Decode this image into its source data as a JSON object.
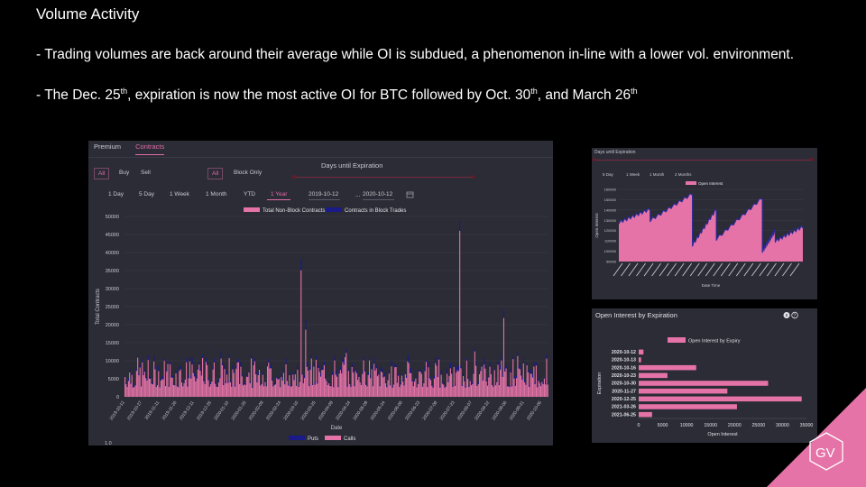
{
  "slide": {
    "title": "Volume Activity",
    "bullet1": "- Trading volumes are back around their average while OI is subdued, a phenomenon in-line with a lower vol. environment.",
    "bullet2_a": "- The Dec. 25",
    "bullet2_sup1": "th",
    "bullet2_b": ", expiration is now the most active OI for BTC followed by Oct. 30",
    "bullet2_sup2": "th",
    "bullet2_c": ", and March 26",
    "bullet2_sup3": "th"
  },
  "volume_panel": {
    "tabs": [
      "Premium",
      "Contracts"
    ],
    "side_filters": [
      "All",
      "Buy",
      "Sell"
    ],
    "trade_filters": [
      "All",
      "Block Only"
    ],
    "days_label": "Days until Expiration",
    "ranges": [
      "1 Day",
      "5 Day",
      "1 Week",
      "1 Month",
      "YTD",
      "1 Year"
    ],
    "date_from": "2019-10-12",
    "date_sep": "...",
    "date_to": "2020-10-12",
    "bottom_legend": [
      "Puts",
      "Calls"
    ],
    "bottom_value": "1.0"
  },
  "oi_panel": {
    "days_label": "Days until Expiration",
    "ranges": [
      "5 Day",
      "1 Week",
      "1 Month",
      "2 Months"
    ]
  },
  "exp_panel": {
    "title": "Open Interest by Expiration"
  },
  "colors": {
    "pink": "#e573a8",
    "navy": "#1a1a8a",
    "panel": "#2b2c35",
    "grid": "#3d3e4a"
  },
  "chart_data": [
    {
      "type": "bar",
      "title": "",
      "xlabel": "Date",
      "ylabel": "Total Contracts",
      "ylim": [
        0,
        50000
      ],
      "yticks": [
        0,
        5000,
        10000,
        15000,
        20000,
        25000,
        30000,
        35000,
        40000,
        45000,
        50000
      ],
      "legend": [
        "Total Non-Block Contracts",
        "Contracts in Block Trades"
      ],
      "legend_position": "top-center",
      "xrange": [
        "2019-10-12",
        "2020-10-12"
      ],
      "xtick_labels": [
        "2019-10-12",
        "2019-10-27",
        "2019-11-11",
        "2019-11-26",
        "2019-12-11",
        "2019-12-26",
        "2020-01-10",
        "2020-01-25",
        "2020-02-09",
        "2020-02-24",
        "2020-03-10",
        "2020-03-25",
        "2020-04-09",
        "2020-04-24",
        "2020-05-09",
        "2020-05-24",
        "2020-06-08",
        "2020-06-23",
        "2020-07-08",
        "2020-07-23",
        "2020-08-07",
        "2020-08-22",
        "2020-09-06",
        "2020-09-21",
        "2020-10-06"
      ],
      "peaks": [
        {
          "x": "2020-03-12",
          "y": 38000
        },
        {
          "x": "2020-07-27",
          "y": 49000
        },
        {
          "x": "2020-03-16",
          "y": 21500
        },
        {
          "x": "2020-09-03",
          "y": 24000
        }
      ],
      "typical_range": [
        3000,
        12000
      ]
    },
    {
      "type": "area",
      "title": "",
      "xlabel": "Date Time",
      "ylabel": "Open Interest",
      "ylim": [
        90000,
        160000
      ],
      "yticks": [
        90000,
        100000,
        110000,
        120000,
        130000,
        140000,
        150000,
        160000
      ],
      "legend": [
        "Open Interest"
      ],
      "legend_position": "top-center"
    },
    {
      "type": "bar",
      "orientation": "horizontal",
      "xlabel": "Open Interest",
      "ylabel": "Expiration",
      "legend": [
        "Open Interest by Expiry"
      ],
      "legend_position": "top-center",
      "xlim": [
        0,
        35000
      ],
      "xticks": [
        0,
        5000,
        10000,
        15000,
        20000,
        25000,
        30000,
        35000
      ],
      "categories": [
        "2020-10-12",
        "2020-10-13",
        "2020-10-16",
        "2020-10-23",
        "2020-10-30",
        "2020-11-27",
        "2020-12-25",
        "2021-03-26",
        "2021-06-25"
      ],
      "values": [
        1000,
        500,
        12000,
        6000,
        27000,
        18500,
        34000,
        20500,
        2800
      ]
    }
  ]
}
